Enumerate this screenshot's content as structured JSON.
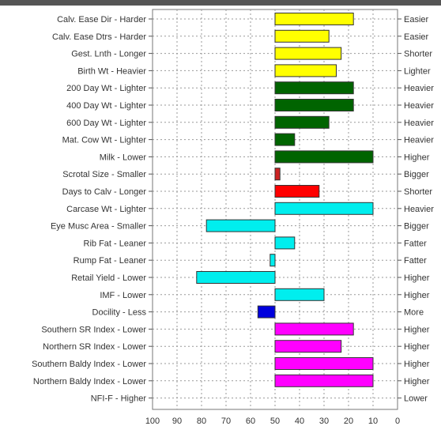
{
  "chart_data": {
    "type": "bar",
    "orientation": "horizontal",
    "x_reversed": true,
    "xlim": [
      100,
      0
    ],
    "xticks": [
      "100",
      "90",
      "80",
      "70",
      "60",
      "50",
      "40",
      "30",
      "20",
      "10",
      "0"
    ],
    "baseline": 50,
    "grid": true,
    "categories": [
      {
        "left": "Calv. Ease Dir - Harder",
        "right": "Easier",
        "start": 50,
        "end": 18,
        "color": "#ffff00"
      },
      {
        "left": "Calv. Ease Dtrs - Harder",
        "right": "Easier",
        "start": 50,
        "end": 28,
        "color": "#ffff00"
      },
      {
        "left": "Gest. Lnth - Longer",
        "right": "Shorter",
        "start": 50,
        "end": 23,
        "color": "#ffff00"
      },
      {
        "left": "Birth Wt - Heavier",
        "right": "Lighter",
        "start": 50,
        "end": 25,
        "color": "#ffff00"
      },
      {
        "left": "200 Day Wt - Lighter",
        "right": "Heavier",
        "start": 50,
        "end": 18,
        "color": "#006400"
      },
      {
        "left": "400 Day Wt - Lighter",
        "right": "Heavier",
        "start": 50,
        "end": 18,
        "color": "#006400"
      },
      {
        "left": "600 Day Wt - Lighter",
        "right": "Heavier",
        "start": 50,
        "end": 28,
        "color": "#006400"
      },
      {
        "left": "Mat. Cow Wt - Lighter",
        "right": "Heavier",
        "start": 50,
        "end": 42,
        "color": "#006400"
      },
      {
        "left": "Milk - Lower",
        "right": "Higher",
        "start": 50,
        "end": 10,
        "color": "#006400"
      },
      {
        "left": "Scrotal Size - Smaller",
        "right": "Bigger",
        "start": 50,
        "end": 48,
        "color": "#cc2222"
      },
      {
        "left": "Days to Calv - Longer",
        "right": "Shorter",
        "start": 50,
        "end": 32,
        "color": "#ff0000"
      },
      {
        "left": "Carcase Wt - Lighter",
        "right": "Heavier",
        "start": 50,
        "end": 10,
        "color": "#00eeee"
      },
      {
        "left": "Eye Musc Area - Smaller",
        "right": "Bigger",
        "start": 50,
        "end": 78,
        "color": "#00eeee"
      },
      {
        "left": "Rib Fat - Leaner",
        "right": "Fatter",
        "start": 50,
        "end": 42,
        "color": "#00eeee"
      },
      {
        "left": "Rump Fat - Leaner",
        "right": "Fatter",
        "start": 50,
        "end": 52,
        "color": "#00eeee"
      },
      {
        "left": "Retail Yield - Lower",
        "right": "Higher",
        "start": 50,
        "end": 82,
        "color": "#00eeee"
      },
      {
        "left": "IMF - Lower",
        "right": "Higher",
        "start": 50,
        "end": 30,
        "color": "#00eeee"
      },
      {
        "left": "Docility - Less",
        "right": "More",
        "start": 50,
        "end": 57,
        "color": "#0000dd"
      },
      {
        "left": "Southern SR Index - Lower",
        "right": "Higher",
        "start": 50,
        "end": 18,
        "color": "#ff00ff"
      },
      {
        "left": "Northern SR Index - Lower",
        "right": "Higher",
        "start": 50,
        "end": 23,
        "color": "#ff00ff"
      },
      {
        "left": "Southern Baldy Index - Lower",
        "right": "Higher",
        "start": 50,
        "end": 10,
        "color": "#ff00ff"
      },
      {
        "left": "Northern Baldy Index - Lower",
        "right": "Higher",
        "start": 50,
        "end": 10,
        "color": "#ff00ff"
      },
      {
        "left": "NFI-F - Higher",
        "right": "Lower",
        "start": null,
        "end": null,
        "color": null
      }
    ]
  }
}
